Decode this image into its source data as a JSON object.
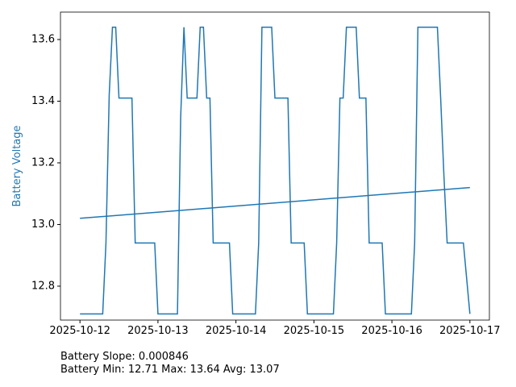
{
  "chart_data": {
    "type": "line",
    "ylabel": "Battery Voltage",
    "ylabel_color": "#1f77b4",
    "series": [
      {
        "color": "#1f77b4",
        "x": [
          "2025-10-12T00:00",
          "2025-10-12T07:00",
          "2025-10-12T08:00",
          "2025-10-12T09:00",
          "2025-10-12T10:00",
          "2025-10-12T11:00",
          "2025-10-12T12:00",
          "2025-10-12T16:00",
          "2025-10-12T17:00",
          "2025-10-12T23:00",
          "2025-10-13T00:00",
          "2025-10-13T06:00",
          "2025-10-13T07:00",
          "2025-10-13T08:00",
          "2025-10-13T09:00",
          "2025-10-13T12:00",
          "2025-10-13T13:00",
          "2025-10-13T14:00",
          "2025-10-13T15:00",
          "2025-10-13T16:00",
          "2025-10-13T17:00",
          "2025-10-13T22:00",
          "2025-10-13T23:00",
          "2025-10-14T06:00",
          "2025-10-14T07:00",
          "2025-10-14T08:00",
          "2025-10-14T11:00",
          "2025-10-14T12:00",
          "2025-10-14T16:00",
          "2025-10-14T17:00",
          "2025-10-14T21:00",
          "2025-10-14T22:00",
          "2025-10-15T06:00",
          "2025-10-15T07:00",
          "2025-10-15T08:00",
          "2025-10-15T09:00",
          "2025-10-15T10:00",
          "2025-10-15T13:00",
          "2025-10-15T14:00",
          "2025-10-15T16:00",
          "2025-10-15T17:00",
          "2025-10-15T21:00",
          "2025-10-15T22:00",
          "2025-10-16T06:00",
          "2025-10-16T07:00",
          "2025-10-16T08:00",
          "2025-10-16T14:00",
          "2025-10-16T15:00",
          "2025-10-16T16:00",
          "2025-10-16T17:00",
          "2025-10-16T22:00",
          "2025-10-17T00:00"
        ],
        "values": [
          12.71,
          12.71,
          12.94,
          13.42,
          13.64,
          13.64,
          13.41,
          13.41,
          12.94,
          12.94,
          12.71,
          12.71,
          13.35,
          13.64,
          13.41,
          13.41,
          13.64,
          13.64,
          13.41,
          13.41,
          12.94,
          12.94,
          12.71,
          12.71,
          12.94,
          13.64,
          13.64,
          13.41,
          13.41,
          12.94,
          12.94,
          12.71,
          12.71,
          12.94,
          13.41,
          13.41,
          13.64,
          13.64,
          13.41,
          13.41,
          12.94,
          12.94,
          12.71,
          12.71,
          12.94,
          13.64,
          13.64,
          13.41,
          13.16,
          12.94,
          12.94,
          12.71
        ]
      },
      {
        "color": "#1f77b4",
        "x": [
          "2025-10-12T00:00",
          "2025-10-17T00:00"
        ],
        "values": [
          13.02,
          13.12
        ]
      }
    ],
    "xlim": [
      "2025-10-11T18:00",
      "2025-10-17T06:00"
    ],
    "xticks": [
      "2025-10-12",
      "2025-10-13",
      "2025-10-14",
      "2025-10-15",
      "2025-10-16",
      "2025-10-17"
    ],
    "ylim": [
      12.69,
      13.689
    ],
    "yticks": [
      12.8,
      {
        "value": 13,
        "label": "13.0"
      },
      13.2,
      13.4,
      13.6
    ],
    "annotations": [
      "Battery Slope: 0.000846",
      "Battery Min: 12.71 Max: 13.64 Avg: 13.07"
    ]
  }
}
